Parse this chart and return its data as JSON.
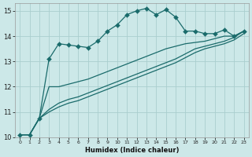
{
  "xlabel": "Humidex (Indice chaleur)",
  "xlim": [
    -0.5,
    23.5
  ],
  "ylim": [
    10,
    15.3
  ],
  "xticks": [
    0,
    1,
    2,
    3,
    4,
    5,
    6,
    7,
    8,
    9,
    10,
    11,
    12,
    13,
    14,
    15,
    16,
    17,
    18,
    19,
    20,
    21,
    22,
    23
  ],
  "yticks": [
    10,
    11,
    12,
    13,
    14,
    15
  ],
  "bg_color": "#cce8e8",
  "line_color": "#1a6b6b",
  "grid_color": "#aacece",
  "lines": [
    {
      "x": [
        0,
        1,
        2,
        3,
        4,
        5,
        6,
        7,
        8,
        9,
        10,
        11,
        12,
        13,
        14,
        15,
        16,
        17,
        18,
        19,
        20,
        21,
        22,
        23
      ],
      "y": [
        10.1,
        10.1,
        10.75,
        13.1,
        13.7,
        13.65,
        13.6,
        13.55,
        13.8,
        14.2,
        14.45,
        14.85,
        15.0,
        15.1,
        14.85,
        15.05,
        14.75,
        14.2,
        14.2,
        14.1,
        14.1,
        14.25,
        14.0,
        14.2
      ],
      "marker": true,
      "linestyle": "-"
    },
    {
      "x": [
        0,
        1,
        2,
        3,
        4,
        5,
        6,
        7,
        8,
        9,
        10,
        11,
        12,
        13,
        14,
        15,
        16,
        17,
        18,
        19,
        20,
        21,
        22,
        23
      ],
      "y": [
        10.1,
        10.1,
        10.75,
        12.0,
        12.0,
        12.1,
        12.2,
        12.3,
        12.45,
        12.6,
        12.75,
        12.9,
        13.05,
        13.2,
        13.35,
        13.5,
        13.6,
        13.7,
        13.75,
        13.8,
        13.9,
        14.0,
        14.0,
        14.2
      ],
      "marker": false,
      "linestyle": "-"
    },
    {
      "x": [
        0,
        1,
        2,
        3,
        4,
        5,
        6,
        7,
        8,
        9,
        10,
        11,
        12,
        13,
        14,
        15,
        16,
        17,
        18,
        19,
        20,
        21,
        22,
        23
      ],
      "y": [
        10.1,
        10.1,
        10.75,
        11.1,
        11.35,
        11.5,
        11.6,
        11.75,
        11.9,
        12.05,
        12.2,
        12.35,
        12.5,
        12.65,
        12.8,
        12.95,
        13.1,
        13.3,
        13.5,
        13.6,
        13.7,
        13.8,
        13.95,
        14.2
      ],
      "marker": false,
      "linestyle": "-"
    },
    {
      "x": [
        0,
        1,
        2,
        3,
        4,
        5,
        6,
        7,
        8,
        9,
        10,
        11,
        12,
        13,
        14,
        15,
        16,
        17,
        18,
        19,
        20,
        21,
        22,
        23
      ],
      "y": [
        10.1,
        10.1,
        10.75,
        11.0,
        11.2,
        11.35,
        11.45,
        11.6,
        11.75,
        11.9,
        12.05,
        12.2,
        12.35,
        12.5,
        12.65,
        12.8,
        12.95,
        13.15,
        13.35,
        13.5,
        13.6,
        13.7,
        13.85,
        14.1
      ],
      "marker": false,
      "linestyle": "-"
    }
  ],
  "markersize": 3.0,
  "linewidth": 0.9
}
